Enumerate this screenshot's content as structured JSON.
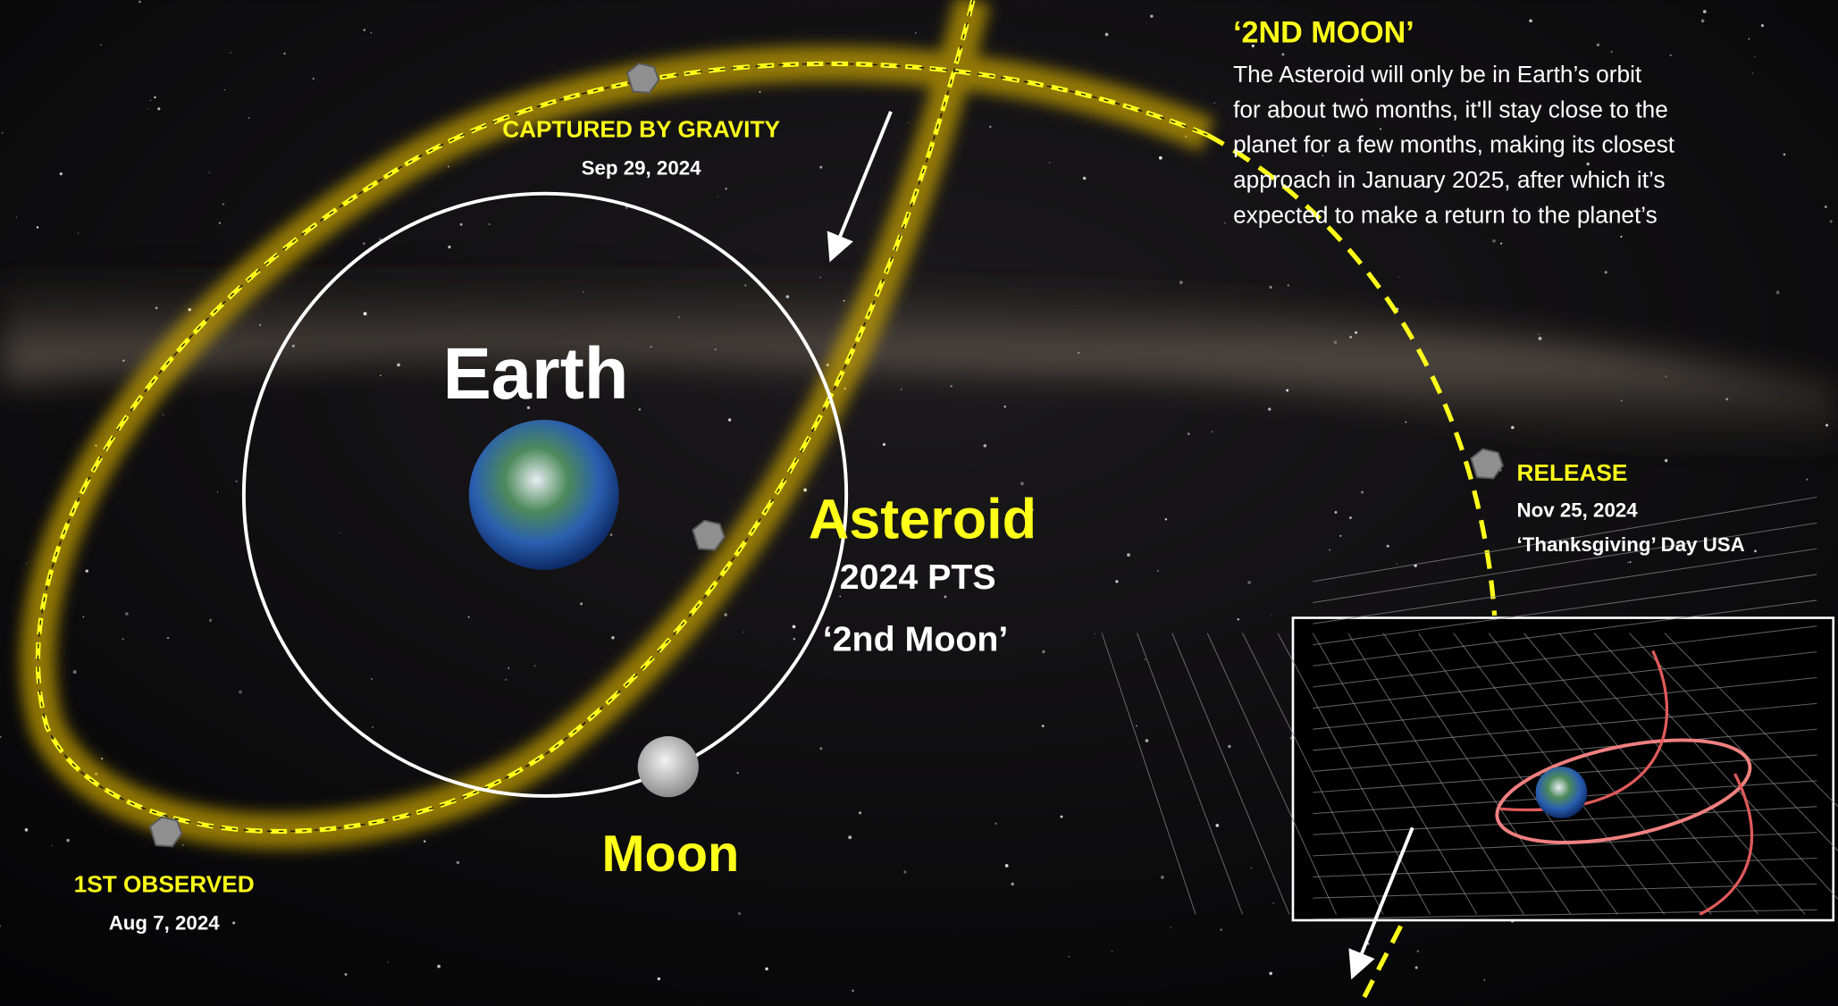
{
  "info": {
    "title": "‘2ND MOON’",
    "lines": [
      "The Asteroid will only be in Earth’s orbit",
      "for about two months, it’ll stay close to the",
      "planet for a few months, making its closest",
      "approach in January 2025, after which it’s",
      "expected to make a return to the planet’s"
    ]
  },
  "captured": {
    "label": "CAPTURED BY GRAVITY",
    "date": "Sep 29, 2024"
  },
  "earth": {
    "label": "Earth"
  },
  "asteroid": {
    "label": "Asteroid",
    "designation": "2024 PTS",
    "nickname": "‘2nd Moon’"
  },
  "moon": {
    "label": "Moon"
  },
  "first_observed": {
    "label": "1ST OBSERVED",
    "date": "Aug 7, 2024"
  },
  "release": {
    "label": "RELEASE",
    "date": "Nov 25, 2024",
    "note": "‘Thanksgiving’ Day  USA"
  }
}
